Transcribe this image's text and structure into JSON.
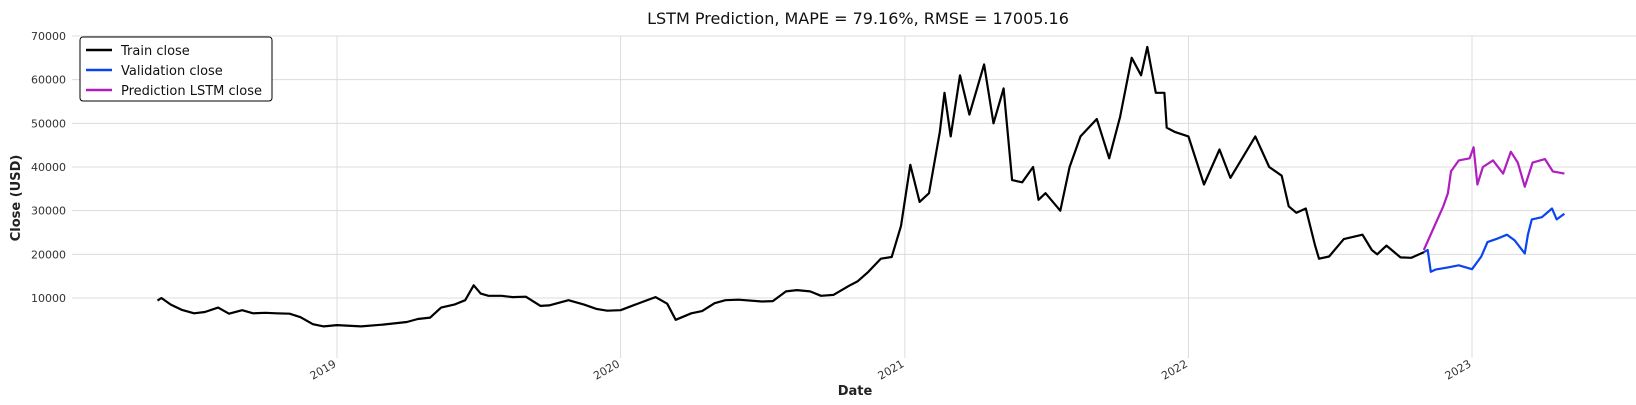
{
  "chart_data": {
    "type": "line",
    "title": "LSTM Prediction, MAPE = 79.16%, RMSE = 17005.16",
    "xlabel": "Date",
    "ylabel": "Close (USD)",
    "xlim": [
      "2018-03-15",
      "2023-08-15"
    ],
    "ylim": [
      0,
      70000
    ],
    "y_ticks": [
      10000,
      20000,
      30000,
      40000,
      50000,
      60000,
      70000
    ],
    "y_tick_labels": [
      "10000",
      "20000",
      "30000",
      "40000",
      "50000",
      "60000",
      "70000"
    ],
    "x_ticks": [
      "2019-01-01",
      "2020-01-01",
      "2021-01-01",
      "2022-01-01",
      "2023-01-01"
    ],
    "x_tick_labels": [
      "2019",
      "2020",
      "2021",
      "2022",
      "2023"
    ],
    "grid": true,
    "legend_position": "top-left",
    "series": [
      {
        "name": "Train close",
        "color": "#000000",
        "points": [
          [
            "2018-05-15",
            9400
          ],
          [
            "2018-05-20",
            10000
          ],
          [
            "2018-06-01",
            8500
          ],
          [
            "2018-06-15",
            7300
          ],
          [
            "2018-07-01",
            6500
          ],
          [
            "2018-07-15",
            6800
          ],
          [
            "2018-08-01",
            7800
          ],
          [
            "2018-08-15",
            6400
          ],
          [
            "2018-09-01",
            7200
          ],
          [
            "2018-09-15",
            6500
          ],
          [
            "2018-10-01",
            6600
          ],
          [
            "2018-10-15",
            6500
          ],
          [
            "2018-11-01",
            6400
          ],
          [
            "2018-11-15",
            5600
          ],
          [
            "2018-12-01",
            4000
          ],
          [
            "2018-12-15",
            3500
          ],
          [
            "2019-01-01",
            3800
          ],
          [
            "2019-02-01",
            3500
          ],
          [
            "2019-03-01",
            3900
          ],
          [
            "2019-04-01",
            4500
          ],
          [
            "2019-04-15",
            5200
          ],
          [
            "2019-05-01",
            5500
          ],
          [
            "2019-05-15",
            7800
          ],
          [
            "2019-06-01",
            8500
          ],
          [
            "2019-06-15",
            9500
          ],
          [
            "2019-06-26",
            12900
          ],
          [
            "2019-07-05",
            11000
          ],
          [
            "2019-07-15",
            10500
          ],
          [
            "2019-08-01",
            10500
          ],
          [
            "2019-08-15",
            10200
          ],
          [
            "2019-09-01",
            10300
          ],
          [
            "2019-09-20",
            8200
          ],
          [
            "2019-10-01",
            8300
          ],
          [
            "2019-10-26",
            9500
          ],
          [
            "2019-11-15",
            8500
          ],
          [
            "2019-12-01",
            7500
          ],
          [
            "2019-12-15",
            7100
          ],
          [
            "2020-01-01",
            7200
          ],
          [
            "2020-02-01",
            9300
          ],
          [
            "2020-02-15",
            10200
          ],
          [
            "2020-03-01",
            8700
          ],
          [
            "2020-03-12",
            5000
          ],
          [
            "2020-04-01",
            6500
          ],
          [
            "2020-04-15",
            7000
          ],
          [
            "2020-05-01",
            8800
          ],
          [
            "2020-05-15",
            9500
          ],
          [
            "2020-06-01",
            9600
          ],
          [
            "2020-07-01",
            9200
          ],
          [
            "2020-07-15",
            9300
          ],
          [
            "2020-08-01",
            11500
          ],
          [
            "2020-08-15",
            11800
          ],
          [
            "2020-09-01",
            11500
          ],
          [
            "2020-09-15",
            10500
          ],
          [
            "2020-10-01",
            10700
          ],
          [
            "2020-10-21",
            12800
          ],
          [
            "2020-11-01",
            13800
          ],
          [
            "2020-11-15",
            16000
          ],
          [
            "2020-12-01",
            19000
          ],
          [
            "2020-12-15",
            19400
          ],
          [
            "2020-12-27",
            26500
          ],
          [
            "2021-01-08",
            40500
          ],
          [
            "2021-01-20",
            32000
          ],
          [
            "2021-02-01",
            34000
          ],
          [
            "2021-02-15",
            48000
          ],
          [
            "2021-02-21",
            57000
          ],
          [
            "2021-03-01",
            47000
          ],
          [
            "2021-03-13",
            61000
          ],
          [
            "2021-03-25",
            52000
          ],
          [
            "2021-04-13",
            63500
          ],
          [
            "2021-04-25",
            50000
          ],
          [
            "2021-05-08",
            58000
          ],
          [
            "2021-05-19",
            37000
          ],
          [
            "2021-06-01",
            36500
          ],
          [
            "2021-06-15",
            40000
          ],
          [
            "2021-06-22",
            32500
          ],
          [
            "2021-07-01",
            34000
          ],
          [
            "2021-07-20",
            30000
          ],
          [
            "2021-08-01",
            40000
          ],
          [
            "2021-08-15",
            47000
          ],
          [
            "2021-09-05",
            51000
          ],
          [
            "2021-09-21",
            42000
          ],
          [
            "2021-10-05",
            51500
          ],
          [
            "2021-10-20",
            65000
          ],
          [
            "2021-11-01",
            61000
          ],
          [
            "2021-11-09",
            67500
          ],
          [
            "2021-11-20",
            57000
          ],
          [
            "2021-12-01",
            57000
          ],
          [
            "2021-12-04",
            49000
          ],
          [
            "2021-12-15",
            48000
          ],
          [
            "2022-01-01",
            47000
          ],
          [
            "2022-01-21",
            36000
          ],
          [
            "2022-02-10",
            44000
          ],
          [
            "2022-02-24",
            37500
          ],
          [
            "2022-03-28",
            47000
          ],
          [
            "2022-04-15",
            40000
          ],
          [
            "2022-05-01",
            38000
          ],
          [
            "2022-05-10",
            31000
          ],
          [
            "2022-05-20",
            29500
          ],
          [
            "2022-06-01",
            30500
          ],
          [
            "2022-06-13",
            22000
          ],
          [
            "2022-06-18",
            19000
          ],
          [
            "2022-07-01",
            19500
          ],
          [
            "2022-07-20",
            23500
          ],
          [
            "2022-08-13",
            24500
          ],
          [
            "2022-08-25",
            21000
          ],
          [
            "2022-09-01",
            20000
          ],
          [
            "2022-09-13",
            22000
          ],
          [
            "2022-10-01",
            19300
          ],
          [
            "2022-10-15",
            19200
          ],
          [
            "2022-10-31",
            20500
          ]
        ]
      },
      {
        "name": "Validation close",
        "color": "#0a44ee",
        "points": [
          [
            "2022-10-31",
            20500
          ],
          [
            "2022-11-05",
            21000
          ],
          [
            "2022-11-09",
            16000
          ],
          [
            "2022-11-15",
            16500
          ],
          [
            "2022-12-01",
            17000
          ],
          [
            "2022-12-15",
            17500
          ],
          [
            "2023-01-01",
            16600
          ],
          [
            "2023-01-13",
            19500
          ],
          [
            "2023-01-21",
            22800
          ],
          [
            "2023-02-01",
            23500
          ],
          [
            "2023-02-15",
            24500
          ],
          [
            "2023-02-25",
            23200
          ],
          [
            "2023-03-10",
            20200
          ],
          [
            "2023-03-14",
            24500
          ],
          [
            "2023-03-19",
            28000
          ],
          [
            "2023-04-01",
            28500
          ],
          [
            "2023-04-14",
            30500
          ],
          [
            "2023-04-20",
            28000
          ],
          [
            "2023-04-30",
            29300
          ]
        ]
      },
      {
        "name": "Prediction LSTM close",
        "color": "#b01ec0",
        "points": [
          [
            "2022-10-31",
            21000
          ],
          [
            "2022-11-10",
            25000
          ],
          [
            "2022-11-25",
            31000
          ],
          [
            "2022-12-01",
            34000
          ],
          [
            "2022-12-05",
            39000
          ],
          [
            "2022-12-15",
            41500
          ],
          [
            "2022-12-29",
            42000
          ],
          [
            "2023-01-03",
            44500
          ],
          [
            "2023-01-08",
            36000
          ],
          [
            "2023-01-15",
            40000
          ],
          [
            "2023-01-28",
            41500
          ],
          [
            "2023-02-10",
            38500
          ],
          [
            "2023-02-20",
            43500
          ],
          [
            "2023-03-01",
            41000
          ],
          [
            "2023-03-10",
            35500
          ],
          [
            "2023-03-20",
            41000
          ],
          [
            "2023-04-05",
            41800
          ],
          [
            "2023-04-15",
            39000
          ],
          [
            "2023-04-30",
            38500
          ]
        ]
      }
    ]
  }
}
